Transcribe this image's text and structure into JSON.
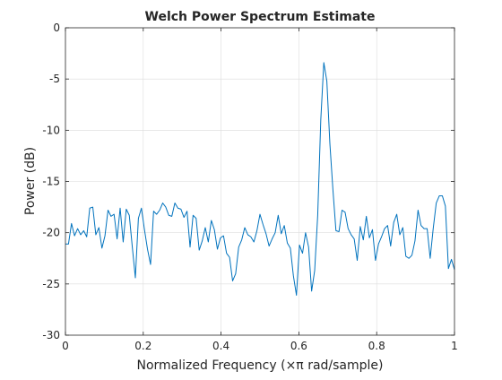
{
  "chart_data": {
    "type": "line",
    "title": "Welch Power Spectrum Estimate",
    "xlabel": "Normalized Frequency  (×π rad/sample)",
    "ylabel": "Power (dB)",
    "xlim": [
      0,
      1
    ],
    "ylim": [
      -30,
      0
    ],
    "xticks": [
      0,
      0.2,
      0.4,
      0.6,
      0.8,
      1
    ],
    "xtick_labels": [
      "0",
      "0.2",
      "0.4",
      "0.6",
      "0.8",
      "1"
    ],
    "yticks": [
      -30,
      -25,
      -20,
      -15,
      -10,
      -5,
      0
    ],
    "ytick_labels": [
      "-30",
      "-25",
      "-20",
      "-15",
      "-10",
      "-5",
      "0"
    ],
    "grid": true,
    "line_color": "#0072BD",
    "series": [
      {
        "x": [
          0,
          0.0078,
          0.0156,
          0.0234,
          0.0313,
          0.0391,
          0.0469,
          0.0547,
          0.0625,
          0.0703,
          0.0781,
          0.0859,
          0.0938,
          0.1016,
          0.1094,
          0.1172,
          0.125,
          0.1328,
          0.1406,
          0.1484,
          0.1563,
          0.1641,
          0.1719,
          0.1797,
          0.1875,
          0.1953,
          0.2031,
          0.2109,
          0.2188,
          0.2266,
          0.2344,
          0.2422,
          0.25,
          0.2578,
          0.2656,
          0.2734,
          0.2813,
          0.2891,
          0.2969,
          0.3047,
          0.3125,
          0.3203,
          0.3281,
          0.3359,
          0.3438,
          0.3516,
          0.3594,
          0.3672,
          0.375,
          0.3828,
          0.3906,
          0.3984,
          0.4063,
          0.4141,
          0.4219,
          0.4297,
          0.4375,
          0.4453,
          0.4531,
          0.4609,
          0.4688,
          0.4766,
          0.4844,
          0.4922,
          0.5,
          0.5078,
          0.5156,
          0.5234,
          0.5313,
          0.5391,
          0.5469,
          0.5547,
          0.5625,
          0.5703,
          0.5781,
          0.5859,
          0.5938,
          0.6016,
          0.6094,
          0.6172,
          0.625,
          0.6328,
          0.6406,
          0.6484,
          0.6563,
          0.6641,
          0.6719,
          0.6797,
          0.6875,
          0.6953,
          0.7031,
          0.7109,
          0.7188,
          0.7266,
          0.7344,
          0.7422,
          0.75,
          0.7578,
          0.7656,
          0.7734,
          0.7813,
          0.7891,
          0.7969,
          0.8047,
          0.8125,
          0.8203,
          0.8281,
          0.8359,
          0.8438,
          0.8516,
          0.8594,
          0.8672,
          0.875,
          0.8828,
          0.8906,
          0.8984,
          0.9063,
          0.9141,
          0.9219,
          0.9297,
          0.9375,
          0.9453,
          0.9531,
          0.9609,
          0.9688,
          0.9766,
          0.9844,
          0.9922,
          1
        ],
        "values": [
          -21.1,
          -21.1,
          -19.1,
          -20.3,
          -19.6,
          -20.2,
          -19.8,
          -20.4,
          -17.6,
          -17.5,
          -20.2,
          -19.5,
          -21.5,
          -20.3,
          -17.8,
          -18.4,
          -18.2,
          -20.6,
          -17.6,
          -20.9,
          -17.7,
          -18.3,
          -21.4,
          -24.4,
          -18.6,
          -17.6,
          -19.7,
          -21.6,
          -23.1,
          -17.9,
          -18.2,
          -17.8,
          -17.1,
          -17.5,
          -18.3,
          -18.4,
          -17.1,
          -17.6,
          -17.7,
          -18.5,
          -17.9,
          -21.4,
          -18.3,
          -18.6,
          -21.7,
          -20.8,
          -19.5,
          -20.9,
          -18.8,
          -19.7,
          -21.6,
          -20.5,
          -20.3,
          -22.0,
          -22.4,
          -24.7,
          -24.0,
          -21.4,
          -20.7,
          -19.5,
          -20.2,
          -20.4,
          -20.9,
          -19.8,
          -18.2,
          -19.2,
          -20.1,
          -21.3,
          -20.6,
          -20.0,
          -18.3,
          -20.1,
          -19.3,
          -21.0,
          -21.5,
          -24.2,
          -26.1,
          -21.2,
          -22.0,
          -20.0,
          -21.4,
          -25.7,
          -23.7,
          -18.3,
          -9.0,
          -3.4,
          -5.2,
          -11.3,
          -15.8,
          -19.8,
          -19.9,
          -17.8,
          -18.0,
          -19.6,
          -20.2,
          -20.6,
          -22.7,
          -19.4,
          -20.7,
          -18.4,
          -20.5,
          -19.7,
          -22.7,
          -21.1,
          -20.4,
          -19.6,
          -19.3,
          -21.3,
          -19.0,
          -18.2,
          -20.2,
          -19.5,
          -22.3,
          -22.5,
          -22.2,
          -20.8,
          -17.8,
          -19.3,
          -19.6,
          -19.6,
          -22.5,
          -19.6,
          -17.1,
          -16.4,
          -16.4,
          -17.4,
          -23.5,
          -22.6,
          -23.6
        ]
      }
    ]
  }
}
